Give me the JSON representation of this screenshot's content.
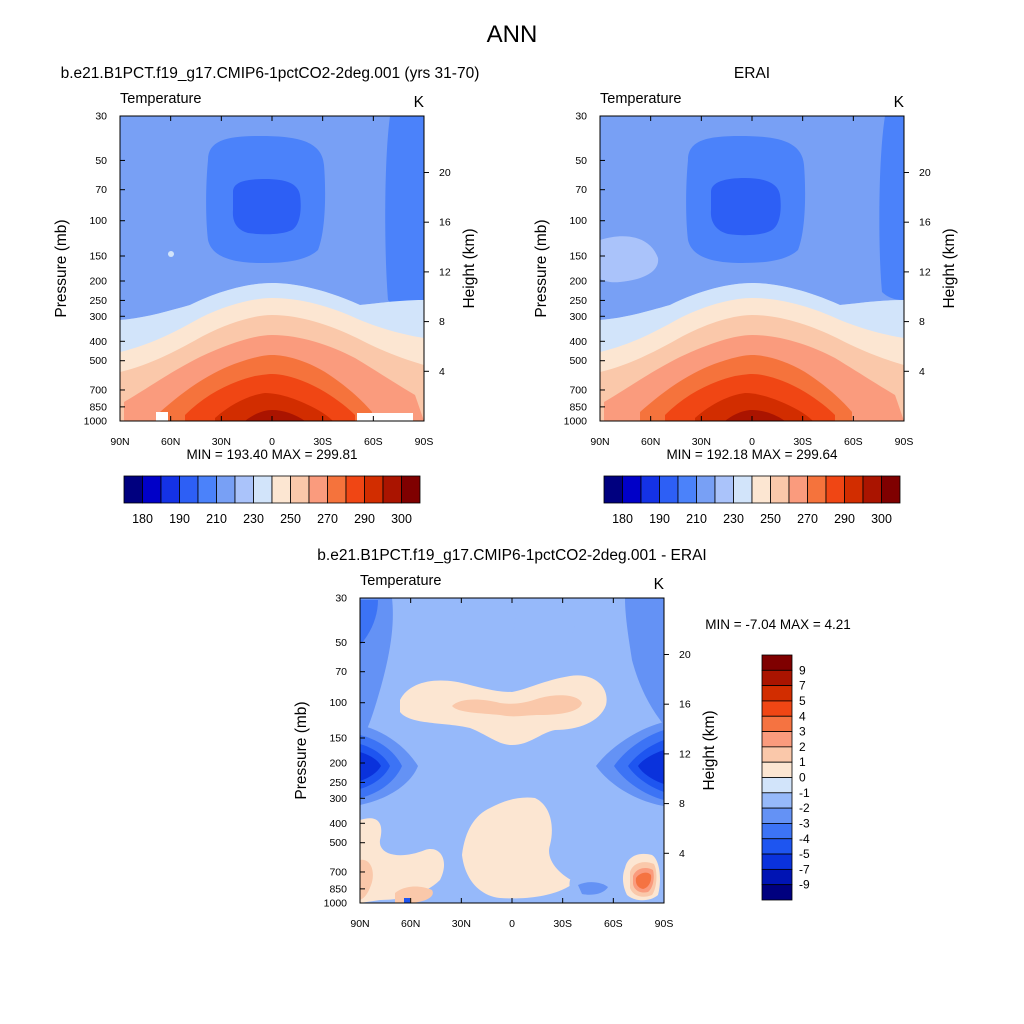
{
  "figure": {
    "title": "ANN"
  },
  "colorbar_ticks": {
    "abs": [
      "180",
      "190",
      "210",
      "230",
      "250",
      "270",
      "290",
      "300"
    ],
    "diff": [
      "9",
      "7",
      "5",
      "4",
      "3",
      "2",
      "1",
      "0",
      "-1",
      "-2",
      "-3",
      "-4",
      "-5",
      "-7",
      "-9"
    ]
  },
  "chart_data": [
    {
      "id": "model",
      "type": "heatmap",
      "title": "b.e21.B1PCT.f19_g17.CMIP6-1pctCO2-2deg.001 (yrs 31-70)",
      "left_label": "Temperature",
      "right_label": "K",
      "ylabel": "Pressure (mb)",
      "ylabel_right": "Height (km)",
      "x_ticks": [
        "90N",
        "60N",
        "30N",
        "0",
        "30S",
        "60S",
        "90S"
      ],
      "y_ticks": [
        "30",
        "50",
        "70",
        "100",
        "150",
        "200",
        "250",
        "300",
        "400",
        "500",
        "700",
        "850",
        "1000"
      ],
      "height_ticks": [
        "20",
        "16",
        "12",
        "8",
        "4"
      ],
      "stats": "MIN = 193.40  MAX = 299.81",
      "min": 193.4,
      "max": 299.81
    },
    {
      "id": "obs",
      "type": "heatmap",
      "title": "ERAI",
      "left_label": "Temperature",
      "right_label": "K",
      "ylabel": "Pressure (mb)",
      "ylabel_right": "Height (km)",
      "x_ticks": [
        "90N",
        "60N",
        "30N",
        "0",
        "30S",
        "60S",
        "90S"
      ],
      "y_ticks": [
        "30",
        "50",
        "70",
        "100",
        "150",
        "200",
        "250",
        "300",
        "400",
        "500",
        "700",
        "850",
        "1000"
      ],
      "height_ticks": [
        "20",
        "16",
        "12",
        "8",
        "4"
      ],
      "stats": "MIN = 192.18  MAX = 299.64",
      "min": 192.18,
      "max": 299.64
    },
    {
      "id": "diff",
      "type": "heatmap",
      "title": "b.e21.B1PCT.f19_g17.CMIP6-1pctCO2-2deg.001 - ERAI",
      "left_label": "Temperature",
      "right_label": "K",
      "ylabel": "Pressure (mb)",
      "ylabel_right": "Height (km)",
      "x_ticks": [
        "90N",
        "60N",
        "30N",
        "0",
        "30S",
        "60S",
        "90S"
      ],
      "y_ticks": [
        "30",
        "50",
        "70",
        "100",
        "150",
        "200",
        "250",
        "300",
        "400",
        "500",
        "700",
        "850",
        "1000"
      ],
      "height_ticks": [
        "20",
        "16",
        "12",
        "8",
        "4"
      ],
      "stats": "MIN =  -7.04  MAX =   4.21",
      "min": -7.04,
      "max": 4.21
    }
  ],
  "palettes": {
    "abs": [
      "#00007f",
      "#0000c8",
      "#1432e6",
      "#2d5ff5",
      "#4b82fa",
      "#78a0f5",
      "#aac3fa",
      "#d2e4fa",
      "#fce6d2",
      "#fac8aa",
      "#fa9b7d",
      "#f5733c",
      "#f04614",
      "#d22d00",
      "#aa1400",
      "#7f0000"
    ],
    "diff": [
      "#00007f",
      "#0014b4",
      "#0a32dc",
      "#1e55f0",
      "#3c73f5",
      "#6492f5",
      "#96b9fa",
      "#d2e4fa",
      "#fce6d2",
      "#fac8aa",
      "#fa9b7d",
      "#f57341",
      "#f04614",
      "#d22d00",
      "#aa1400",
      "#7f0000"
    ]
  }
}
